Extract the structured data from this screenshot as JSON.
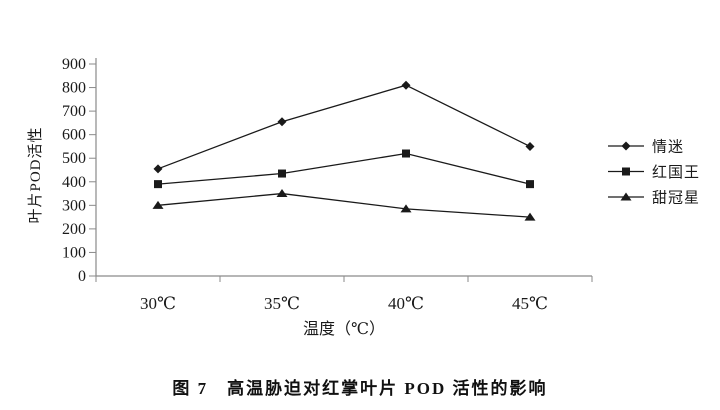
{
  "figure": {
    "caption": "图 7　高温胁迫对红掌叶片 POD 活性的影响"
  },
  "chart_data": {
    "type": "line",
    "title": "",
    "categories": [
      "30℃",
      "35℃",
      "40℃",
      "45℃"
    ],
    "xlabel": "温度（℃）",
    "ylabel": "叶片POD活性",
    "ylim": [
      0,
      900
    ],
    "yticks": [
      0,
      100,
      200,
      300,
      400,
      500,
      600,
      700,
      800,
      900
    ],
    "grid": false,
    "legend_position": "right",
    "line_color": "#1a1a1a",
    "series": [
      {
        "name": "情迷",
        "marker": "diamond",
        "values": [
          455,
          655,
          810,
          550
        ]
      },
      {
        "name": "红国王",
        "marker": "square",
        "values": [
          390,
          435,
          520,
          390
        ]
      },
      {
        "name": "甜冠星",
        "marker": "triangle",
        "values": [
          300,
          350,
          285,
          250
        ]
      }
    ]
  }
}
